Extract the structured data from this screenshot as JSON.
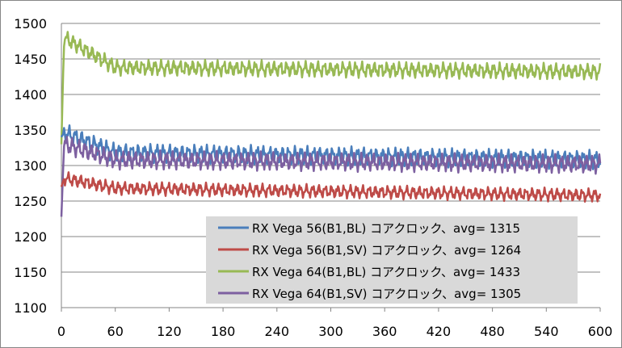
{
  "chart_data": {
    "type": "line",
    "title": "",
    "xlabel": "",
    "ylabel": "",
    "xlim": [
      0,
      600
    ],
    "ylim": [
      1100,
      1500
    ],
    "x_ticks": [
      "0",
      "60",
      "120",
      "180",
      "240",
      "300",
      "360",
      "420",
      "480",
      "540",
      "600"
    ],
    "y_ticks": [
      "1100",
      "1150",
      "1200",
      "1250",
      "1300",
      "1350",
      "1400",
      "1450",
      "1500"
    ],
    "grid": "horizontal",
    "legend_position": "bottom-right",
    "series": [
      {
        "name": "RX Vega 56(B1,BL) コアクロック、avg= 1315",
        "color": "#4a7ebb",
        "start": 1340,
        "peak": 1346,
        "settle": 1318,
        "end": 1308,
        "amplitude": 14
      },
      {
        "name": "RX Vega 56(B1,SV) コアクロック、avg= 1264",
        "color": "#be4b48",
        "start": 1270,
        "peak": 1282,
        "settle": 1268,
        "end": 1258,
        "amplitude": 10
      },
      {
        "name": "RX Vega 64(B1,BL) コアクロック、avg= 1433",
        "color": "#98b954",
        "start": 1330,
        "peak": 1480,
        "settle": 1438,
        "end": 1432,
        "amplitude": 12
      },
      {
        "name": "RX Vega 64(B1,SV) コアクロック、avg= 1305",
        "color": "#7d60a0",
        "start": 1228,
        "peak": 1330,
        "settle": 1308,
        "end": 1302,
        "amplitude": 14
      }
    ]
  }
}
